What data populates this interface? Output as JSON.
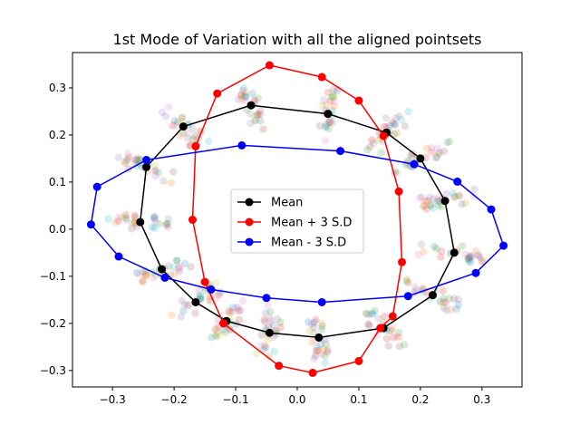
{
  "chart_data": {
    "type": "scatter",
    "title": "1st Mode of Variation with all the aligned pointsets",
    "xlabel": "",
    "ylabel": "",
    "xlim": [
      -0.365,
      0.365
    ],
    "ylim": [
      -0.335,
      0.375
    ],
    "xticks": [
      -0.3,
      -0.2,
      -0.1,
      0.0,
      0.1,
      0.2,
      0.3
    ],
    "xtick_labels": [
      "−0.3",
      "−0.2",
      "−0.1",
      "0.0",
      "0.1",
      "0.2",
      "0.3"
    ],
    "yticks": [
      -0.3,
      -0.2,
      -0.1,
      0.0,
      0.1,
      0.2,
      0.3
    ],
    "ytick_labels": [
      "−0.3",
      "−0.2",
      "−0.1",
      "0.0",
      "0.1",
      "0.2",
      "0.3"
    ],
    "grid": false,
    "legend_position": "center",
    "background_scatter": {
      "description_colors": [
        "#1f77b4",
        "#ff7f0e",
        "#2ca02c",
        "#d62728",
        "#9467bd",
        "#8c564b",
        "#e377c2",
        "#7f7f7f",
        "#bcbd22",
        "#17becf"
      ],
      "opacity": 0.2,
      "point_count_per_set": 16,
      "set_count": 28
    },
    "series": [
      {
        "name": "Mean",
        "color": "#000000",
        "closed": true,
        "x": [
          -0.075,
          0.05,
          0.145,
          0.2,
          0.24,
          0.255,
          0.22,
          0.14,
          0.035,
          -0.045,
          -0.115,
          -0.165,
          -0.22,
          -0.255,
          -0.245,
          -0.185
        ],
        "y": [
          0.263,
          0.245,
          0.205,
          0.15,
          0.06,
          -0.05,
          -0.14,
          -0.21,
          -0.23,
          -0.22,
          -0.195,
          -0.155,
          -0.085,
          0.015,
          0.132,
          0.218
        ]
      },
      {
        "name": "Mean + 3 S.D",
        "color": "#ff0000",
        "closed": true,
        "x": [
          -0.045,
          0.04,
          0.1,
          0.14,
          0.165,
          0.17,
          0.155,
          0.135,
          0.1,
          0.025,
          -0.03,
          -0.12,
          -0.15,
          -0.17,
          -0.165,
          -0.13
        ],
        "y": [
          0.348,
          0.323,
          0.273,
          0.198,
          0.08,
          -0.07,
          -0.185,
          -0.21,
          -0.28,
          -0.305,
          -0.29,
          -0.2,
          -0.112,
          0.02,
          0.176,
          0.288
        ]
      },
      {
        "name": "Mean - 3 S.D",
        "color": "#0000ff",
        "closed": true,
        "x": [
          -0.09,
          0.07,
          0.19,
          0.26,
          0.315,
          0.335,
          0.29,
          0.18,
          0.04,
          -0.05,
          -0.14,
          -0.215,
          -0.29,
          -0.335,
          -0.325,
          -0.245
        ],
        "y": [
          0.178,
          0.166,
          0.138,
          0.101,
          0.042,
          -0.035,
          -0.093,
          -0.142,
          -0.155,
          -0.146,
          -0.128,
          -0.103,
          -0.058,
          0.01,
          0.09,
          0.147
        ]
      }
    ]
  }
}
